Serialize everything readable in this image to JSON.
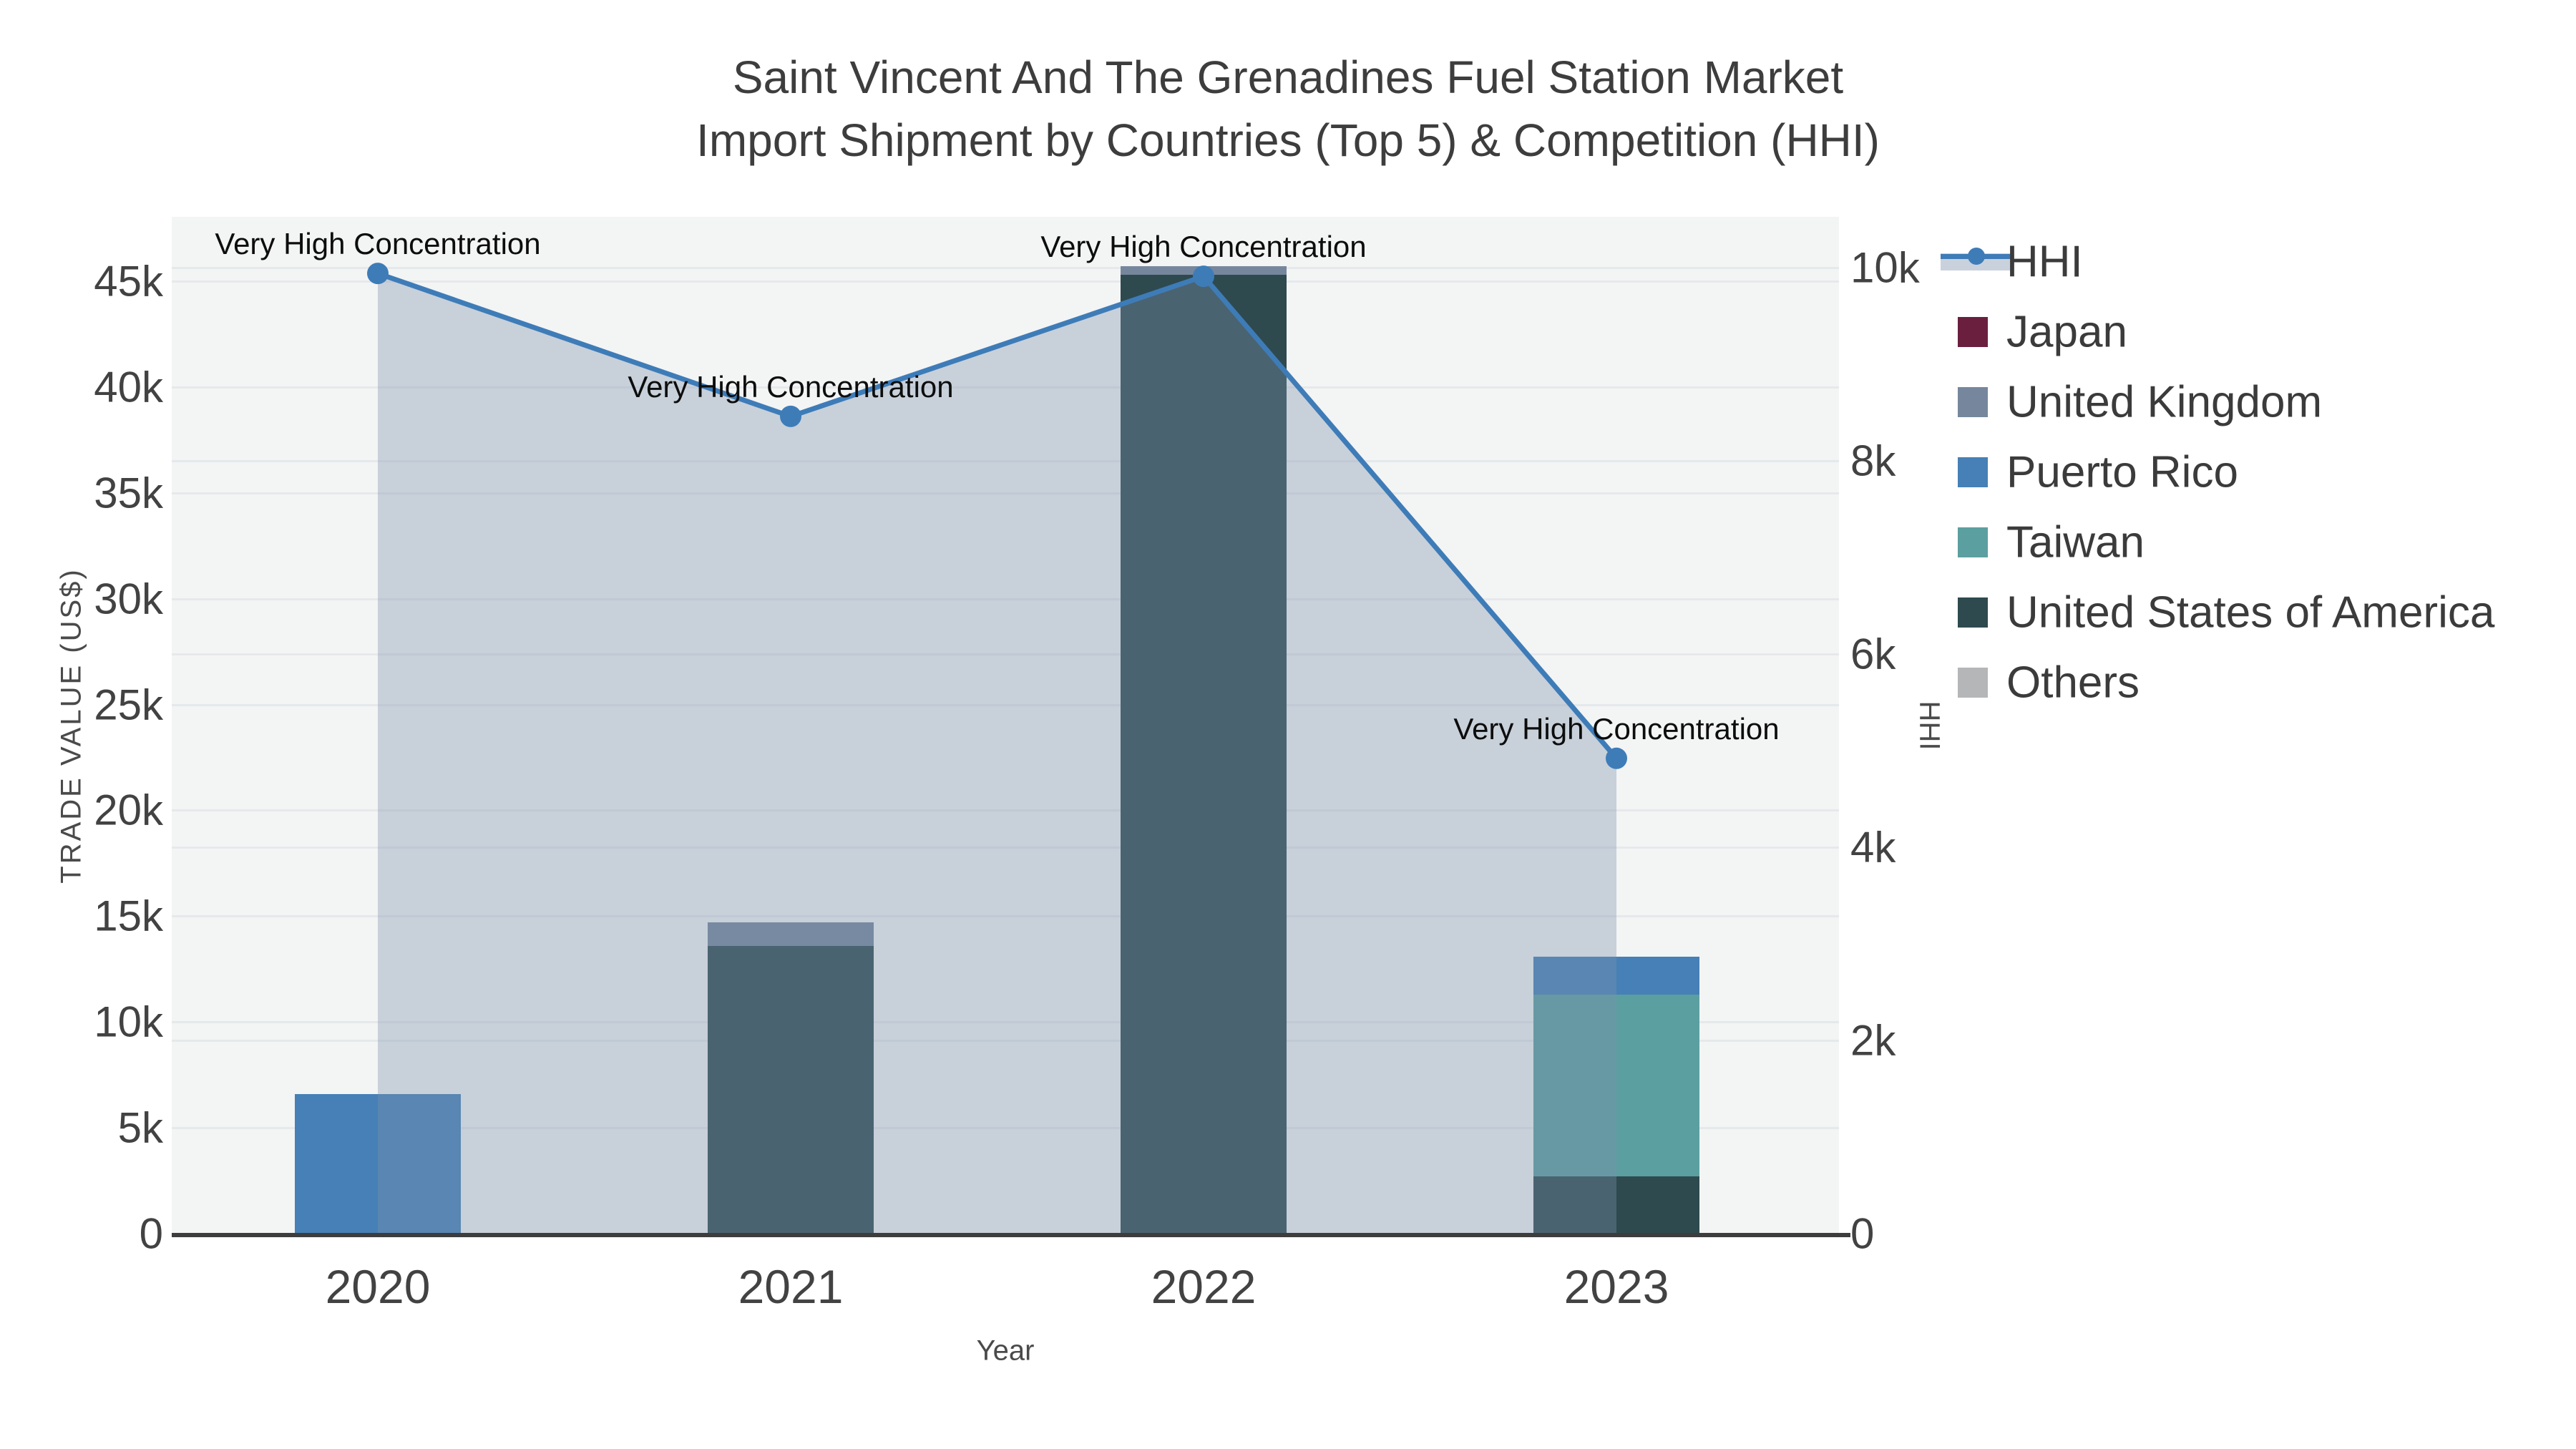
{
  "title": {
    "line1": "Saint Vincent And The Grenadines Fuel Station Market",
    "line2": "Import Shipment by Countries (Top 5) & Competition (HHI)"
  },
  "axes": {
    "x": {
      "title": "Year",
      "tick_labels": [
        "2020",
        "2021",
        "2022",
        "2023"
      ]
    },
    "y_left": {
      "title": "TRADE VALUE (US$)",
      "tick_labels": [
        "0",
        "5k",
        "10k",
        "15k",
        "20k",
        "25k",
        "30k",
        "35k",
        "40k",
        "45k"
      ],
      "tick_values": [
        0,
        5000,
        10000,
        15000,
        20000,
        25000,
        30000,
        35000,
        40000,
        45000
      ]
    },
    "y_right": {
      "title": "HHI",
      "tick_labels": [
        "0",
        "2k",
        "4k",
        "6k",
        "8k",
        "10k"
      ],
      "tick_values": [
        0,
        2000,
        4000,
        6000,
        8000,
        10000
      ]
    }
  },
  "legend": {
    "items": [
      {
        "label": "HHI",
        "kind": "line",
        "color": "#3E7CB8",
        "band_color": "#C9D1DC"
      },
      {
        "label": "Japan",
        "kind": "square",
        "color": "#6A1F3F"
      },
      {
        "label": "United Kingdom",
        "kind": "square",
        "color": "#76879D"
      },
      {
        "label": "Puerto Rico",
        "kind": "square",
        "color": "#4680B6"
      },
      {
        "label": "Taiwan",
        "kind": "square",
        "color": "#5C9FA0"
      },
      {
        "label": "United States of America",
        "kind": "square",
        "color": "#2E4A4F"
      },
      {
        "label": "Others",
        "kind": "square",
        "color": "#B5B6B8"
      }
    ]
  },
  "chart_data": {
    "type": [
      "bar",
      "line"
    ],
    "categories": [
      "2020",
      "2021",
      "2022",
      "2023"
    ],
    "bar_stack_order_bottom_to_top": [
      "Others",
      "United States of America",
      "Taiwan",
      "Puerto Rico",
      "United Kingdom",
      "Japan"
    ],
    "series": [
      {
        "name": "Japan",
        "axis": "y_left",
        "color": "#6A1F3F",
        "values": [
          0,
          0,
          0,
          0
        ]
      },
      {
        "name": "United Kingdom",
        "axis": "y_left",
        "color": "#76879D",
        "values": [
          0,
          1100,
          400,
          0
        ]
      },
      {
        "name": "Puerto Rico",
        "axis": "y_left",
        "color": "#4680B6",
        "values": [
          6600,
          0,
          0,
          1800
        ]
      },
      {
        "name": "Taiwan",
        "axis": "y_left",
        "color": "#5C9FA0",
        "values": [
          0,
          0,
          0,
          8600
        ]
      },
      {
        "name": "United States of America",
        "axis": "y_left",
        "color": "#2E4A4F",
        "values": [
          0,
          13600,
          45300,
          2700
        ]
      },
      {
        "name": "Others",
        "axis": "y_left",
        "color": "#B5B6B8",
        "values": [
          0,
          0,
          0,
          0
        ]
      }
    ],
    "line_series": {
      "name": "HHI",
      "axis": "y_right",
      "color": "#3E7CB8",
      "area_fill": "rgba(125,145,172,0.36)",
      "values": [
        9940,
        8460,
        9910,
        4920
      ]
    },
    "annotations": [
      {
        "text": "Very High Concentration",
        "category": "2020"
      },
      {
        "text": "Very High Concentration",
        "category": "2021"
      },
      {
        "text": "Very High Concentration",
        "category": "2022"
      },
      {
        "text": "Very High Concentration",
        "category": "2023"
      }
    ],
    "xlabel": "Year",
    "ylabel_left": "TRADE VALUE (US$)",
    "ylabel_right": "HHI",
    "ylim_left": [
      0,
      48000
    ],
    "ylim_right": [
      0,
      10500
    ],
    "grid": true,
    "legend_position": "right"
  },
  "style_colors": {
    "plot_background": "#f3f4f4",
    "gridline": "#e6e9eb",
    "axis_line": "#3d3d3d",
    "tick_text": "#424242",
    "title_text": "#3d3d3d"
  }
}
